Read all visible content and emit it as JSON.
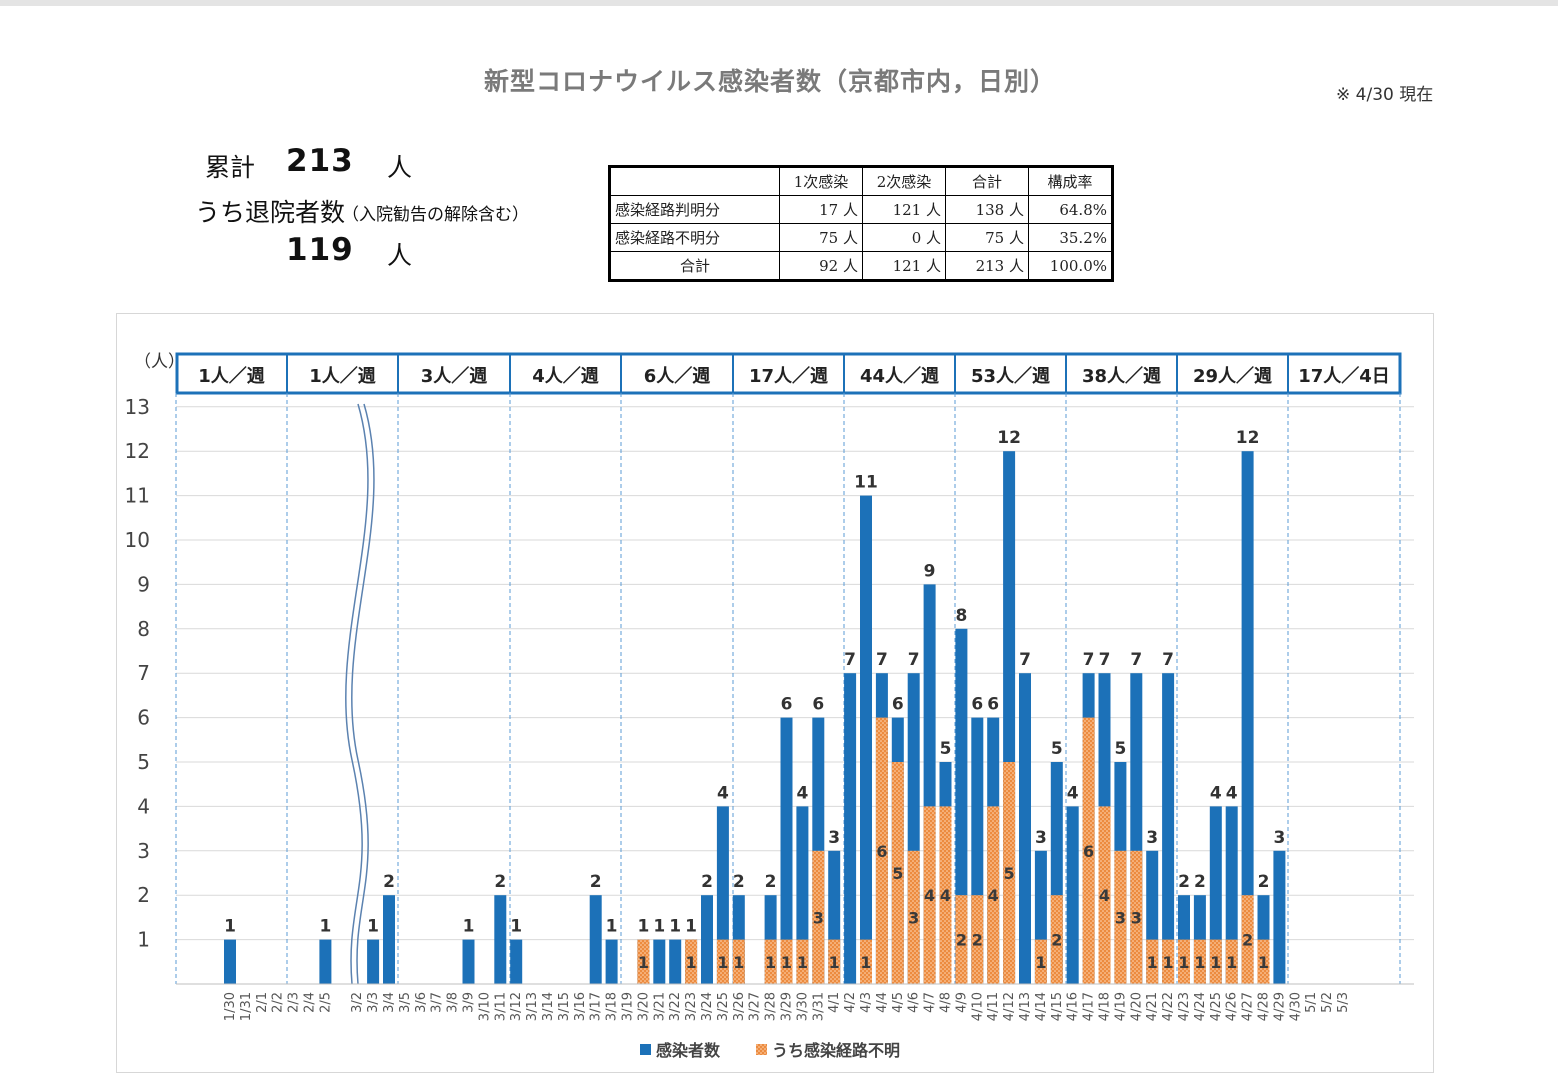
{
  "title": "新型コロナウイルス感染者数（京都市内，日別）",
  "as_of": "※ 4/30 現在",
  "summary": {
    "total_label": "累計",
    "total_value": "213",
    "total_unit": "人",
    "discharged_label": "うち退院者数",
    "discharged_note": "（入院勧告の解除含む）",
    "discharged_value": "119",
    "discharged_unit": "人"
  },
  "table": {
    "headers": [
      "",
      "1次感染",
      "2次感染",
      "合計",
      "構成率"
    ],
    "rows": [
      [
        "感染経路判明分",
        "17 人",
        "121 人",
        "138 人",
        "64.8%"
      ],
      [
        "感染経路不明分",
        "75 人",
        "0 人",
        "75 人",
        "35.2%"
      ],
      [
        "合計",
        "92 人",
        "121 人",
        "213 人",
        "100.0%"
      ]
    ]
  },
  "colors": {
    "total": "#1c71b8",
    "unknown": "#ec8b3f",
    "week_border": "#1c71b8"
  },
  "chart_data": {
    "type": "bar",
    "y_unit_label": "（人）",
    "ylim": [
      0,
      13
    ],
    "y_ticks": [
      "1",
      "2",
      "3",
      "4",
      "5",
      "6",
      "7",
      "8",
      "9",
      "10",
      "11",
      "12",
      "13"
    ],
    "grid": true,
    "legend_position": "bottom",
    "weekly_labels": [
      "1人／週",
      "1人／週",
      "3人／週",
      "4人／週",
      "6人／週",
      "17人／週",
      "44人／週",
      "53人／週",
      "38人／週",
      "29人／週",
      "17人／4日"
    ],
    "categories": [
      "1/30",
      "1/31",
      "2/1",
      "2/2",
      "2/3",
      "2/4",
      "2/5",
      "3/2",
      "3/3",
      "3/4",
      "3/5",
      "3/6",
      "3/7",
      "3/8",
      "3/9",
      "3/10",
      "3/11",
      "3/12",
      "3/13",
      "3/14",
      "3/15",
      "3/16",
      "3/17",
      "3/18",
      "3/19",
      "3/20",
      "3/21",
      "3/22",
      "3/23",
      "3/24",
      "3/25",
      "3/26",
      "3/27",
      "3/28",
      "3/29",
      "3/30",
      "3/31",
      "4/1",
      "4/2",
      "4/3",
      "4/4",
      "4/5",
      "4/6",
      "4/7",
      "4/8",
      "4/9",
      "4/10",
      "4/11",
      "4/12",
      "4/13",
      "4/14",
      "4/15",
      "4/16",
      "4/17",
      "4/18",
      "4/19",
      "4/20",
      "4/21",
      "4/22",
      "4/23",
      "4/24",
      "4/25",
      "4/26",
      "4/27",
      "4/28",
      "4/29",
      "4/30",
      "5/1",
      "5/2",
      "5/3"
    ],
    "series": [
      {
        "name": "感染者数",
        "values": [
          1,
          0,
          0,
          0,
          0,
          0,
          1,
          0,
          1,
          2,
          0,
          0,
          0,
          0,
          1,
          0,
          2,
          1,
          0,
          0,
          0,
          0,
          2,
          1,
          0,
          1,
          1,
          1,
          1,
          2,
          4,
          2,
          0,
          2,
          6,
          4,
          6,
          3,
          7,
          11,
          7,
          6,
          7,
          9,
          5,
          8,
          6,
          6,
          12,
          7,
          3,
          5,
          4,
          7,
          7,
          5,
          7,
          3,
          7,
          2,
          2,
          4,
          4,
          12,
          2,
          3,
          0,
          0,
          0,
          0
        ]
      },
      {
        "name": "うち感染経路不明",
        "values": [
          0,
          0,
          0,
          0,
          0,
          0,
          0,
          0,
          0,
          0,
          0,
          0,
          0,
          0,
          0,
          0,
          0,
          0,
          0,
          0,
          0,
          0,
          0,
          0,
          0,
          1,
          0,
          0,
          1,
          0,
          1,
          1,
          0,
          1,
          1,
          1,
          3,
          1,
          0,
          1,
          6,
          5,
          3,
          4,
          4,
          2,
          2,
          4,
          5,
          0,
          1,
          2,
          0,
          6,
          4,
          3,
          3,
          1,
          1,
          1,
          1,
          1,
          1,
          2,
          1,
          0,
          0,
          0,
          0,
          0
        ]
      }
    ]
  }
}
